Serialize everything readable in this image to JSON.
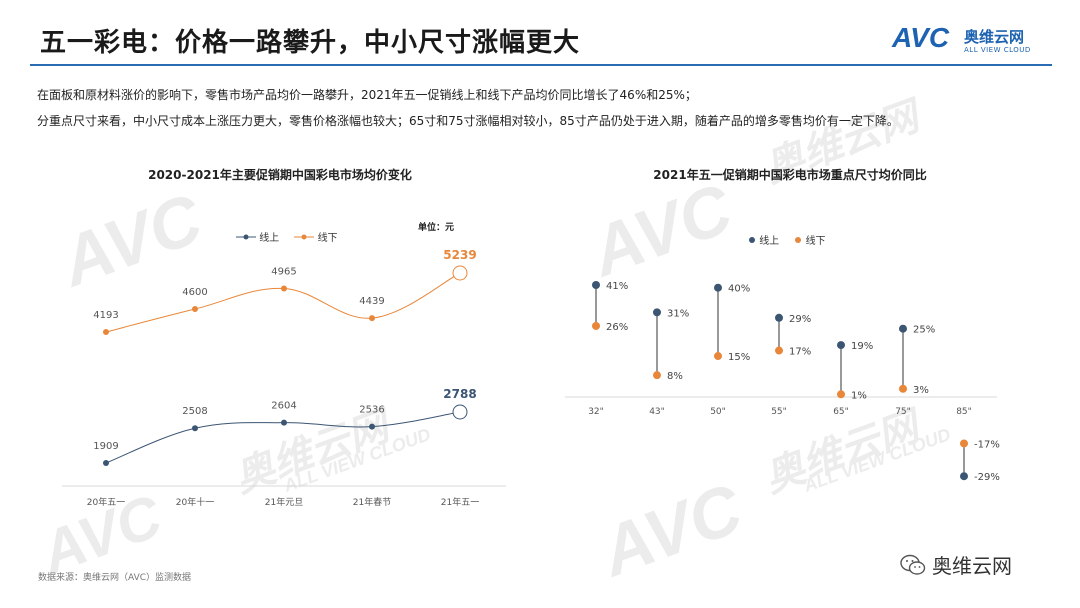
{
  "header": {
    "title": "五一彩电：价格一路攀升，中小尺寸涨幅更大",
    "logo_mark": "AVC",
    "logo_cn": "奥维云网",
    "logo_en": "ALL VIEW CLOUD"
  },
  "intro": {
    "line1": "在面板和原材料涨价的影响下，零售市场产品均价一路攀升，2021年五一促销线上和线下产品均价同比增长了46%和25%；",
    "line2": "分重点尺寸来看，中小尺寸成本上涨压力更大，零售价格涨幅也较大；65寸和75寸涨幅相对较小，85寸产品仍处于进入期，随着产品的增多零售均价有一定下降。"
  },
  "colors": {
    "online": "#3b5573",
    "offline": "#e8873a",
    "accent": "#2a6cb4"
  },
  "chart_data": [
    {
      "type": "line",
      "title": "2020-2021年主要促销期中国彩电市场均价变化",
      "unit": "单位：元",
      "categories": [
        "20年五一",
        "20年十一",
        "21年元旦",
        "21年春节",
        "21年五一"
      ],
      "series": [
        {
          "name": "线上",
          "values": [
            1909,
            2508,
            2604,
            2536,
            2788
          ]
        },
        {
          "name": "线下",
          "values": [
            4193,
            4600,
            4965,
            4439,
            5239
          ]
        }
      ],
      "labels": {
        "online": [
          "1909",
          "2508",
          "2604",
          "2536",
          "2788"
        ],
        "offline": [
          "4193",
          "4600",
          "4965",
          "4439",
          "5239"
        ]
      },
      "legend": "top-center"
    },
    {
      "type": "scatter",
      "title": "2021年五一促销期中国彩电市场重点尺寸均价同比",
      "categories": [
        "32\"",
        "43\"",
        "50\"",
        "55\"",
        "65\"",
        "75\"",
        "85\""
      ],
      "series": [
        {
          "name": "线上",
          "values": [
            41,
            31,
            40,
            29,
            19,
            25,
            -29
          ]
        },
        {
          "name": "线下",
          "values": [
            26,
            8,
            15,
            17,
            1,
            3,
            -17
          ]
        }
      ],
      "labels": {
        "online": [
          "41%",
          "31%",
          "40%",
          "29%",
          "19%",
          "25%",
          "-29%"
        ],
        "offline": [
          "26%",
          "8%",
          "15%",
          "17%",
          "1%",
          "3%",
          "-17%"
        ]
      },
      "legend": "top-center"
    }
  ],
  "footer": {
    "source": "数据来源：奥维云网（AVC）监测数据",
    "wechat": "奥维云网"
  },
  "watermark": {
    "mark": "AVC",
    "cn": "奥维云网",
    "en": "ALL VIEW CLOUD"
  }
}
